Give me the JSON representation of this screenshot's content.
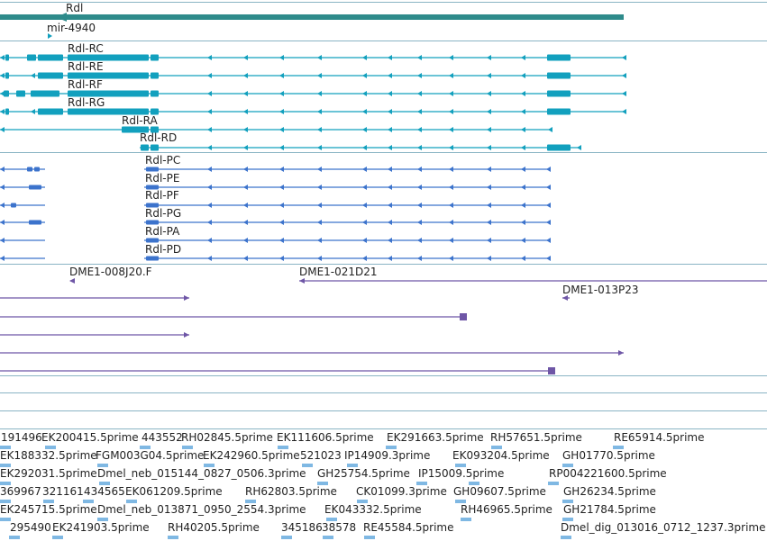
{
  "colors": {
    "gene": "#2e8b8b",
    "mrna": "#12a0be",
    "protein": "#3c73cc",
    "clone": "#6e56a6",
    "est": "#7fb8e3",
    "separator": "#8ab4c4"
  },
  "gene_track": {
    "gene_name": "Rdl",
    "mirna_name": "mir-4940"
  },
  "transcripts": [
    {
      "name": "Rdl-RC"
    },
    {
      "name": "Rdl-RE"
    },
    {
      "name": "Rdl-RF"
    },
    {
      "name": "Rdl-RG"
    },
    {
      "name": "Rdl-RA"
    },
    {
      "name": "Rdl-RD"
    }
  ],
  "proteins": [
    {
      "name": "Rdl-PC"
    },
    {
      "name": "Rdl-PE"
    },
    {
      "name": "Rdl-PF"
    },
    {
      "name": "Rdl-PG"
    },
    {
      "name": "Rdl-PA"
    },
    {
      "name": "Rdl-PD"
    }
  ],
  "clones": [
    {
      "name": "DME1-008J20.F"
    },
    {
      "name": "DME1-021D21"
    },
    {
      "name": "DME1-013P23"
    }
  ],
  "est_rows": [
    [
      "191496",
      "EK200415.5prime",
      "443552",
      "RH02845.5prime",
      "EK111606.5prime",
      "EK291663.5prime",
      "RH57651.5prime",
      "RE65914.5prime"
    ],
    [
      "EK188332.5prime",
      "FGM003G04.5prime",
      "EK242960.5prime",
      "521023",
      "IP14909.3prime",
      "EK093204.5prime",
      "GH01770.5prime"
    ],
    [
      "EK292031.5prime",
      "Dmel_neb_015144_0827_0506.3prime",
      "GH25754.5prime",
      "IP15009.5prime",
      "RP004221600.5prime"
    ],
    [
      "369967",
      "321161",
      "434565",
      "EK061209.5prime",
      "RH62803.5prime",
      "CK01099.3prime",
      "GH09607.5prime",
      "GH26234.5prime"
    ],
    [
      "EK245715.5prime",
      "Dmel_neb_013871_0950_2554.3prime",
      "EK043332.5prime",
      "RH46965.5prime",
      "GH21784.5prime"
    ],
    [
      "295490",
      "EK241903.5prime",
      "RH40205.5prime",
      "345186",
      "38578",
      "RE45584.5prime",
      "Dmel_dig_013016_0712_1237.3prime"
    ]
  ]
}
